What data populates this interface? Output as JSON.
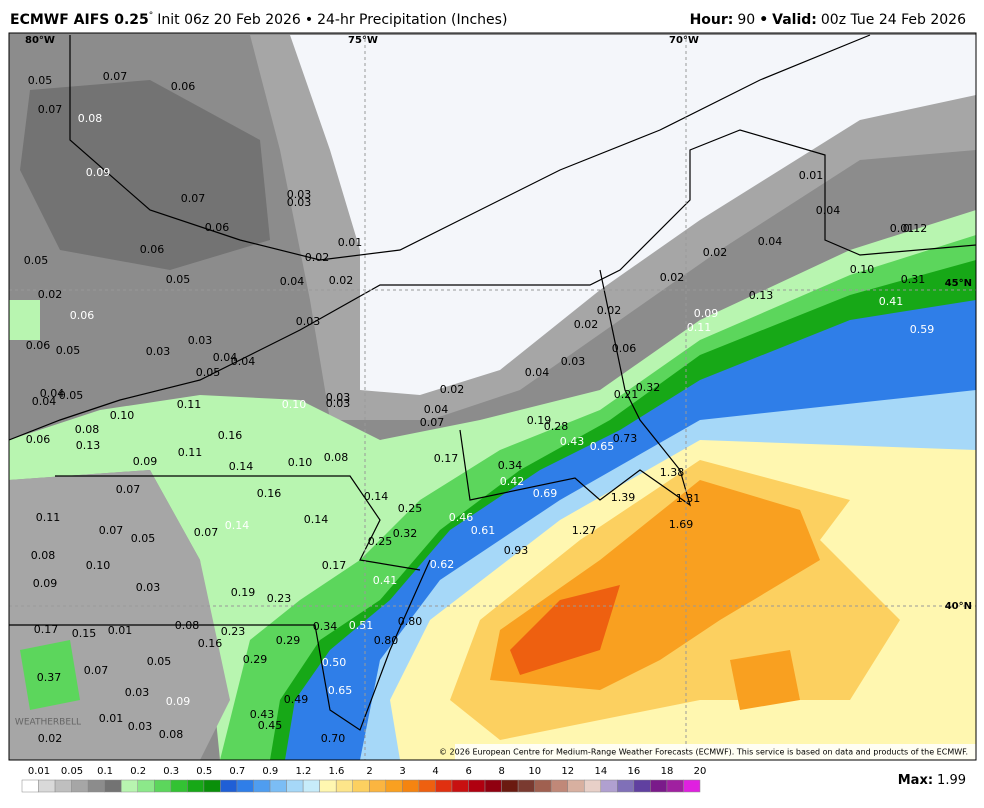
{
  "header": {
    "model": "ECMWF AIFS 0.25",
    "degree": "°",
    "init": "Init 06z 20 Feb 2026",
    "separator": "•",
    "product": "24-hr Precipitation (Inches)",
    "hour_label": "Hour:",
    "hour": "90",
    "separator2": "•",
    "valid_label": "Valid:",
    "valid": "00z Tue 24 Feb 2026"
  },
  "map": {
    "lon_labels": [
      "80°W",
      "75°W",
      "70°W"
    ],
    "lat_labels": [
      "45°N",
      "40°N"
    ],
    "labels": [
      "0.05",
      "0.07",
      "0.06",
      "0.07",
      "0.08",
      "0.09",
      "0.07",
      "0.03",
      "0.03",
      "0.06",
      "0.01",
      "0.05",
      "0.06",
      "0.02",
      "0.05",
      "0.04",
      "0.02",
      "0.02",
      "0.06",
      "0.03",
      "0.06",
      "0.05",
      "0.03",
      "0.03",
      "0.04",
      "0.04",
      "0.05",
      "0.04",
      "0.04",
      "0.05",
      "0.10",
      "0.11",
      "0.10",
      "0.03",
      "0.03",
      "0.08",
      "0.13",
      "0.06",
      "0.16",
      "0.11",
      "0.09",
      "0.14",
      "0.10",
      "0.08",
      "0.07",
      "0.16",
      "0.14",
      "0.11",
      "0.07",
      "0.05",
      "0.07",
      "0.14",
      "0.08",
      "0.10",
      "0.17",
      "0.09",
      "0.03",
      "0.19",
      "0.23",
      "0.17",
      "0.15",
      "0.01",
      "0.08",
      "0.23",
      "0.16",
      "0.29",
      "0.34",
      "0.07",
      "0.05",
      "0.29",
      "0.37",
      "0.03",
      "0.09",
      "0.49",
      "0.01",
      "0.03",
      "0.43",
      "0.45",
      "0.08",
      "0.02",
      "0.50",
      "0.65",
      "0.51",
      "0.80",
      "0.80",
      "0.70",
      "0.02",
      "0.04",
      "0.07",
      "0.17",
      "0.14",
      "0.25",
      "0.25",
      "0.32",
      "0.41",
      "0.62",
      "0.46",
      "0.61",
      "0.34",
      "0.42",
      "0.69",
      "0.19",
      "0.28",
      "0.43",
      "0.65",
      "0.73",
      "0.04",
      "0.03",
      "0.02",
      "0.02",
      "0.06",
      "0.21",
      "0.32",
      "0.93",
      "1.27",
      "1.39",
      "1.38",
      "1.31",
      "1.69",
      "0.01",
      "0.04",
      "0.04",
      "0.02",
      "0.02",
      "0.13",
      "0.09",
      "0.11",
      "0.01",
      "0.12",
      "0.10",
      "0.31",
      "0.41",
      "0.59"
    ],
    "copyright": "© 2026 European Centre for Medium-Range Weather Forecasts (ECMWF). This service is based on data and products of the ECMWF.",
    "logo": "WEATHERBELL"
  },
  "colorbar": {
    "labels": [
      "0.01",
      "0.05",
      "0.1",
      "0.2",
      "0.3",
      "0.5",
      "0.7",
      "0.9",
      "1.2",
      "1.6",
      "2",
      "3",
      "4",
      "6",
      "8",
      "10",
      "12",
      "14",
      "16",
      "18",
      "20"
    ],
    "colors": [
      "#ffffff",
      "#d9d9d9",
      "#bfbfbf",
      "#a6a6a6",
      "#8c8c8c",
      "#737373",
      "#b8f5b0",
      "#8ce88a",
      "#5cd65c",
      "#33c233",
      "#17a817",
      "#0a8f0a",
      "#1f5fd6",
      "#2f7ee8",
      "#4f9df0",
      "#7bbdf5",
      "#a6d8f8",
      "#c7ecfa",
      "#fff7b0",
      "#fde58a",
      "#fcd060",
      "#fbb540",
      "#f9a020",
      "#f58410",
      "#ee6010",
      "#e03010",
      "#c81010",
      "#b00010",
      "#900010",
      "#6b1a10",
      "#7a3a30",
      "#a06050",
      "#c08878",
      "#d8b0a0",
      "#e8d0c8",
      "#b0a0d0",
      "#8070b8",
      "#6040a0",
      "#7a1a8a",
      "#a020a0",
      "#e020e0"
    ],
    "max_label": "Max:",
    "max": "1.99"
  }
}
